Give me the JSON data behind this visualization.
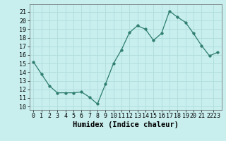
{
  "x": [
    0,
    1,
    2,
    3,
    4,
    5,
    6,
    7,
    8,
    9,
    10,
    11,
    12,
    13,
    14,
    15,
    16,
    17,
    18,
    19,
    20,
    21,
    22,
    23
  ],
  "y": [
    15.2,
    13.8,
    12.4,
    11.6,
    11.6,
    11.6,
    11.7,
    11.1,
    10.3,
    12.6,
    15.0,
    16.6,
    18.6,
    19.4,
    19.0,
    17.7,
    18.5,
    21.1,
    20.4,
    19.8,
    18.5,
    17.1,
    15.9,
    16.3
  ],
  "line_color": "#2e7d6e",
  "marker_color": "#2e7d6e",
  "bg_color": "#c8eeee",
  "grid_color": "#b0dddd",
  "xlabel": "Humidex (Indice chaleur)",
  "ytick_labels": [
    "10",
    "11",
    "12",
    "13",
    "14",
    "15",
    "16",
    "17",
    "18",
    "19",
    "20",
    "21"
  ],
  "ytick_positions": [
    10,
    11,
    12,
    13,
    14,
    15,
    16,
    17,
    18,
    19,
    20,
    21
  ],
  "xlim": [
    -0.5,
    23.5
  ],
  "ylim": [
    9.6,
    21.9
  ],
  "xtick_labels": [
    "0",
    "1",
    "2",
    "3",
    "4",
    "5",
    "6",
    "7",
    "8",
    "9",
    "10",
    "11",
    "12",
    "13",
    "14",
    "15",
    "16",
    "17",
    "18",
    "19",
    "20",
    "21",
    "2223"
  ],
  "xtick_positions": [
    0,
    1,
    2,
    3,
    4,
    5,
    6,
    7,
    8,
    9,
    10,
    11,
    12,
    13,
    14,
    15,
    16,
    17,
    18,
    19,
    20,
    21,
    22.5
  ],
  "axis_fontsize": 6.5,
  "tick_fontsize": 6.0,
  "xlabel_fontsize": 7.5
}
